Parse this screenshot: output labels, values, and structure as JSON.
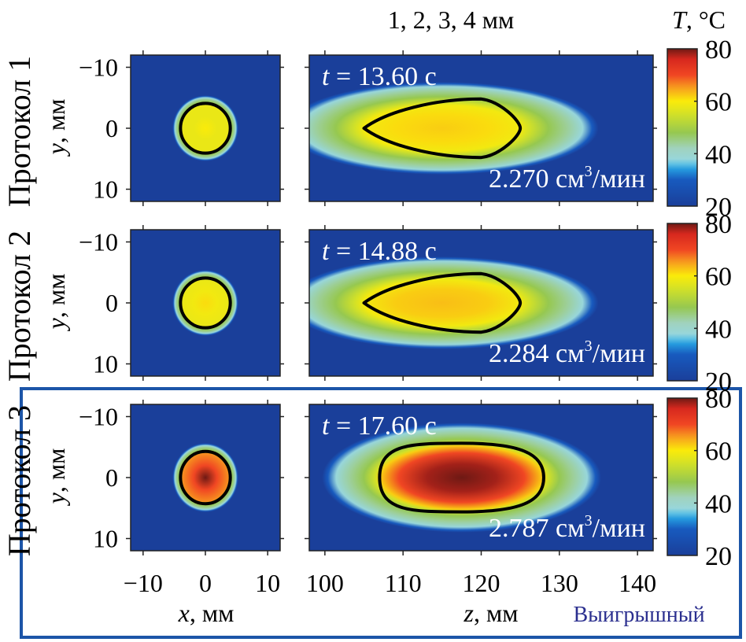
{
  "chart_data": {
    "type": "heatmap",
    "header": "1, 2, 3, 4 мм",
    "colorbar": {
      "title": "T, °C",
      "title_var": "T",
      "title_unit": ", °C",
      "range": [
        20,
        80
      ],
      "ticks": [
        "80",
        "60",
        "40",
        "20"
      ],
      "tick_values": [
        80,
        60,
        40,
        20
      ],
      "colormap": "jet"
    },
    "xy_panel": {
      "xlabel_var": "x",
      "xlabel_unit": ", мм",
      "ylabel_var": "y",
      "ylabel_unit": ", мм",
      "xlim": [
        -12,
        12
      ],
      "ylim": [
        -12,
        12
      ],
      "y_inverted": true,
      "xticks": [
        "−10",
        "0",
        "10"
      ],
      "xtick_values": [
        -10,
        0,
        10
      ],
      "yticks": [
        "−10",
        "0",
        "10"
      ],
      "ytick_values": [
        -10,
        0,
        10
      ]
    },
    "z_panel": {
      "xlabel_var": "z",
      "xlabel_unit": ", мм",
      "xlim": [
        98,
        142
      ],
      "xticks": [
        "100",
        "110",
        "120",
        "130",
        "140"
      ],
      "xtick_values": [
        100,
        110,
        120,
        130,
        140
      ]
    },
    "protocols": [
      {
        "label": "Протокол 1",
        "time_var": "t",
        "time_text": " = 13.60 с",
        "time_s": 13.6,
        "flow_value": "2.270",
        "flow_unit_pre": " см",
        "flow_unit_sup": "3",
        "flow_unit_post": "/мин",
        "flow_cm3_per_min": 2.27,
        "xy_peak_T": 60,
        "xy_ablation_radius_mm": 4,
        "z_ablation_range_mm": [
          105,
          125
        ],
        "z_ablation_halfwidth_mm": 4,
        "z_peak_T": 62,
        "highlighted": false
      },
      {
        "label": "Протокол 2",
        "time_var": "t",
        "time_text": " = 14.88 с",
        "time_s": 14.88,
        "flow_value": "2.284",
        "flow_unit_pre": " см",
        "flow_unit_sup": "3",
        "flow_unit_post": "/мин",
        "flow_cm3_per_min": 2.284,
        "xy_peak_T": 61,
        "xy_ablation_radius_mm": 4,
        "z_ablation_range_mm": [
          105,
          125
        ],
        "z_ablation_halfwidth_mm": 4,
        "z_peak_T": 63,
        "highlighted": false
      },
      {
        "label": "Протокол 3",
        "time_var": "t",
        "time_text": " = 17.60 с",
        "time_s": 17.6,
        "flow_value": "2.787",
        "flow_unit_pre": " см",
        "flow_unit_sup": "3",
        "flow_unit_post": "/мин",
        "flow_cm3_per_min": 2.787,
        "xy_peak_T": 80,
        "xy_ablation_radius_mm": 4,
        "z_ablation_range_mm": [
          107,
          128
        ],
        "z_ablation_halfwidth_mm": 4.5,
        "z_peak_T": 80,
        "highlighted": true
      }
    ],
    "winner_label": "Выигрышный",
    "colors": {
      "background_T20": "#1a3f9a",
      "contour": "#000000",
      "highlight_frame": "#1c55a8",
      "winner_text": "#2b2f8f",
      "annotation_text": "#ffffff"
    }
  }
}
